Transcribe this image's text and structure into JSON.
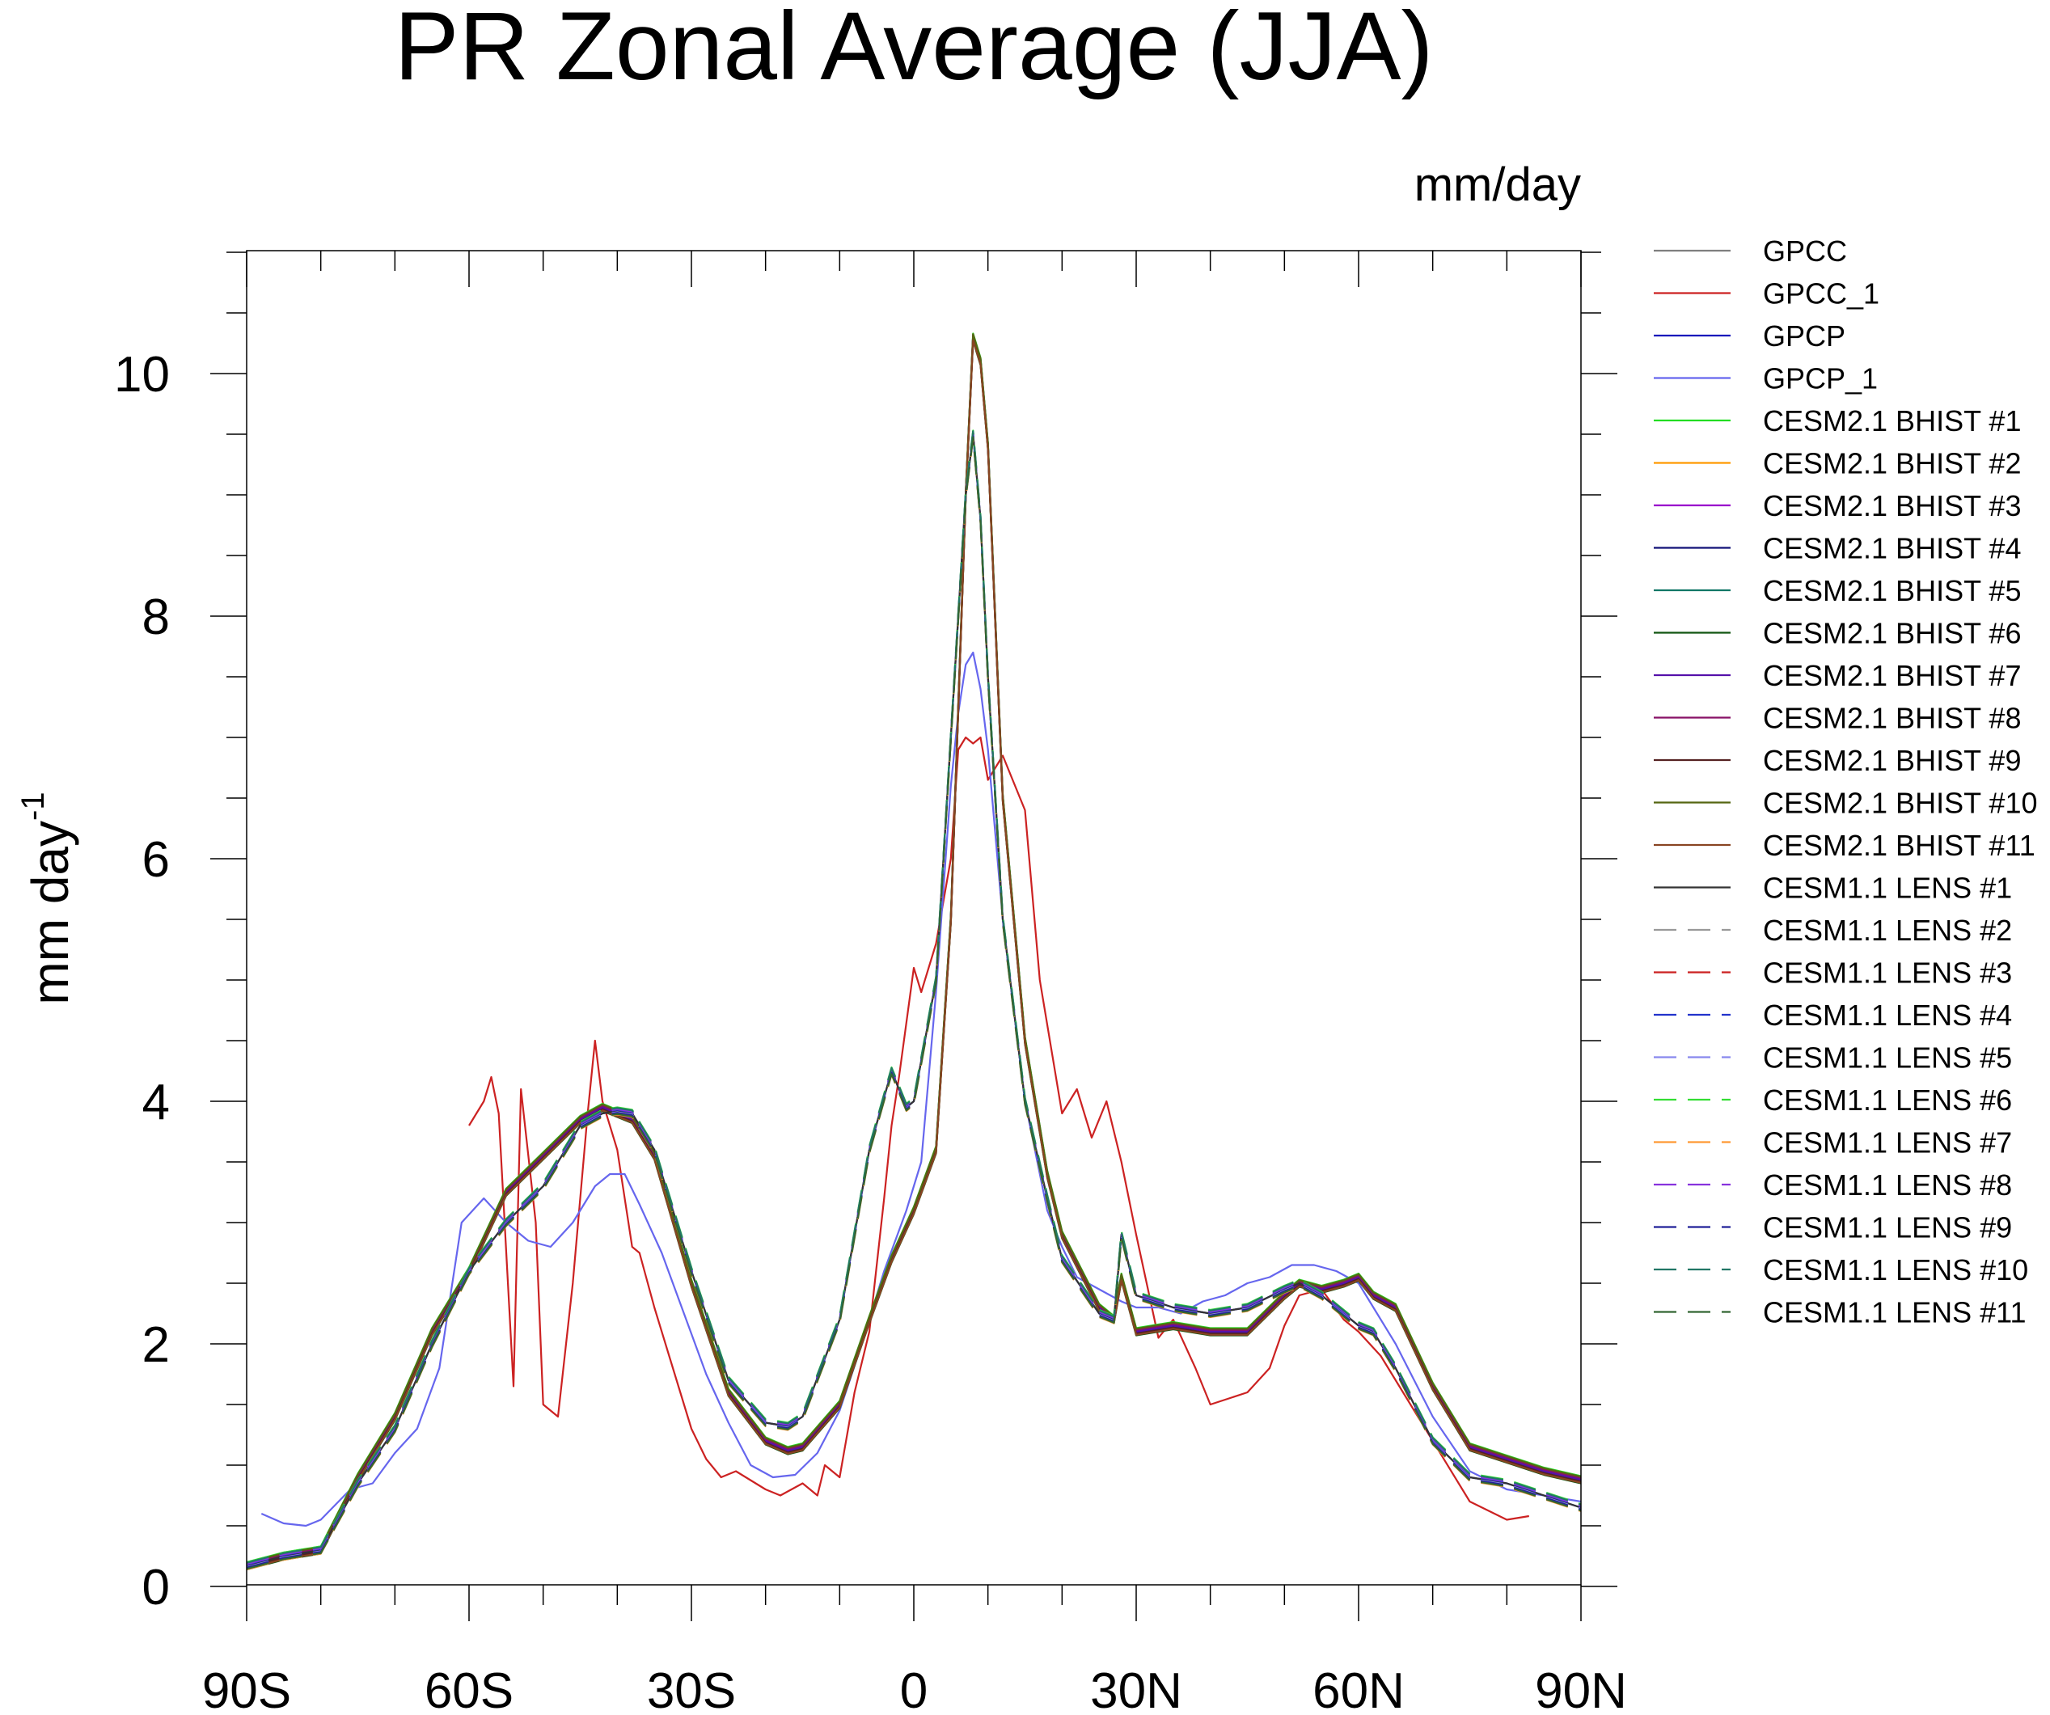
{
  "chart_data": {
    "type": "line",
    "title": "PR Zonal Average (JJA)",
    "units_label": "mm/day",
    "ylabel": "mm day",
    "ylabel_superscript": "-1",
    "xlim": [
      -90,
      90
    ],
    "ylim": [
      0,
      11
    ],
    "x_ticks": [
      {
        "value": -90,
        "label": "90S"
      },
      {
        "value": -60,
        "label": "60S"
      },
      {
        "value": -30,
        "label": "30S"
      },
      {
        "value": 0,
        "label": "0"
      },
      {
        "value": 30,
        "label": "30N"
      },
      {
        "value": 60,
        "label": "60N"
      },
      {
        "value": 90,
        "label": "90N"
      }
    ],
    "y_ticks": [
      {
        "value": 0,
        "label": "0"
      },
      {
        "value": 2,
        "label": "2"
      },
      {
        "value": 4,
        "label": "4"
      },
      {
        "value": 6,
        "label": "6"
      },
      {
        "value": 8,
        "label": "8"
      },
      {
        "value": 10,
        "label": "10"
      }
    ],
    "legend_position": "right",
    "profiles": {
      "cesm2": {
        "x": [
          -90,
          -85,
          -80,
          -75,
          -70,
          -65,
          -60,
          -55,
          -50,
          -45,
          -42,
          -40,
          -38,
          -35,
          -30,
          -25,
          -20,
          -17,
          -15,
          -10,
          -6,
          -3,
          0,
          3,
          5,
          7,
          8,
          9,
          10,
          12,
          15,
          18,
          20,
          25,
          27,
          28,
          30,
          35,
          40,
          45,
          50,
          52,
          55,
          58,
          60,
          62,
          65,
          70,
          75,
          80,
          85,
          90
        ],
        "y": [
          0.17,
          0.25,
          0.3,
          0.9,
          1.4,
          2.1,
          2.6,
          3.25,
          3.55,
          3.85,
          3.95,
          3.9,
          3.85,
          3.55,
          2.5,
          1.6,
          1.2,
          1.12,
          1.15,
          1.5,
          2.2,
          2.7,
          3.1,
          3.6,
          5.5,
          9.0,
          10.3,
          10.1,
          9.4,
          6.5,
          4.5,
          3.4,
          2.9,
          2.3,
          2.2,
          2.55,
          2.1,
          2.15,
          2.1,
          2.1,
          2.4,
          2.5,
          2.45,
          2.5,
          2.55,
          2.4,
          2.3,
          1.65,
          1.15,
          1.05,
          0.95,
          0.88
        ]
      },
      "cesm1": {
        "x": [
          -90,
          -85,
          -80,
          -75,
          -70,
          -65,
          -60,
          -55,
          -50,
          -45,
          -42,
          -40,
          -38,
          -35,
          -30,
          -25,
          -20,
          -17,
          -15,
          -10,
          -6,
          -3,
          -1,
          0,
          3,
          5,
          7,
          8,
          9,
          10,
          12,
          15,
          18,
          20,
          25,
          27,
          28,
          30,
          35,
          40,
          45,
          50,
          52,
          55,
          58,
          60,
          62,
          65,
          70,
          75,
          80,
          85,
          90
        ],
        "y": [
          0.17,
          0.25,
          0.3,
          0.85,
          1.3,
          2.0,
          2.6,
          3.0,
          3.3,
          3.8,
          3.9,
          3.92,
          3.9,
          3.6,
          2.6,
          1.7,
          1.35,
          1.32,
          1.4,
          2.2,
          3.6,
          4.25,
          3.95,
          4.0,
          5.0,
          7.0,
          9.0,
          9.5,
          8.8,
          7.5,
          5.5,
          4.0,
          3.2,
          2.7,
          2.25,
          2.2,
          2.9,
          2.4,
          2.3,
          2.25,
          2.3,
          2.45,
          2.5,
          2.4,
          2.25,
          2.15,
          2.1,
          1.8,
          1.2,
          0.9,
          0.85,
          0.75,
          0.65
        ]
      },
      "gpcc": {
        "x": [
          -60,
          -58,
          -57,
          -56,
          -54,
          -53,
          -51,
          -50,
          -48,
          -46,
          -44,
          -43,
          -42,
          -40,
          -38,
          -37,
          -35,
          -33,
          -30,
          -28,
          -26,
          -24,
          -20,
          -18,
          -15,
          -13,
          -12,
          -10,
          -9,
          -8,
          -6,
          -4,
          -3,
          -2,
          0,
          1,
          3,
          5,
          6,
          7,
          8,
          9,
          10,
          12,
          15,
          17,
          20,
          22,
          24,
          26,
          28,
          30,
          33,
          35,
          38,
          40,
          45,
          48,
          50,
          52,
          55,
          58,
          60,
          63,
          66,
          70,
          75,
          80,
          83
        ],
        "y": [
          3.8,
          4.0,
          4.2,
          3.9,
          1.65,
          4.1,
          3.0,
          1.5,
          1.4,
          2.5,
          3.9,
          4.5,
          4.0,
          3.6,
          2.8,
          2.75,
          2.3,
          1.9,
          1.3,
          1.05,
          0.9,
          0.95,
          0.8,
          0.75,
          0.85,
          0.75,
          1.0,
          0.9,
          1.25,
          1.6,
          2.1,
          3.2,
          3.8,
          4.2,
          5.1,
          4.9,
          5.3,
          6.0,
          6.9,
          7.0,
          6.95,
          7.0,
          6.65,
          6.85,
          6.4,
          5.0,
          3.9,
          4.1,
          3.7,
          4.0,
          3.5,
          2.9,
          2.05,
          2.2,
          1.8,
          1.5,
          1.6,
          1.8,
          2.15,
          2.4,
          2.45,
          2.2,
          2.1,
          1.9,
          1.6,
          1.2,
          0.7,
          0.55,
          0.58
        ]
      },
      "gpcp": {
        "x": [
          -88,
          -85,
          -82,
          -80,
          -76,
          -73,
          -70,
          -67,
          -64,
          -61,
          -58,
          -55,
          -52,
          -49,
          -46,
          -43,
          -41,
          -39,
          -37,
          -34,
          -31,
          -28,
          -25,
          -22,
          -19,
          -16,
          -13,
          -10,
          -7,
          -4,
          -1,
          1,
          3,
          5,
          6,
          7,
          8,
          9,
          10,
          12,
          15,
          18,
          20,
          22,
          25,
          28,
          30,
          33,
          36,
          39,
          42,
          45,
          48,
          51,
          54,
          57,
          60,
          65,
          70,
          75,
          80,
          85,
          90
        ],
        "y": [
          0.6,
          0.52,
          0.5,
          0.55,
          0.8,
          0.85,
          1.1,
          1.3,
          1.8,
          3.0,
          3.2,
          3.0,
          2.85,
          2.8,
          3.0,
          3.3,
          3.4,
          3.4,
          3.15,
          2.75,
          2.25,
          1.75,
          1.35,
          1.0,
          0.9,
          0.92,
          1.1,
          1.45,
          2.0,
          2.6,
          3.1,
          3.5,
          4.9,
          6.6,
          7.2,
          7.6,
          7.7,
          7.4,
          6.9,
          5.5,
          4.0,
          3.1,
          2.8,
          2.55,
          2.45,
          2.35,
          2.3,
          2.3,
          2.25,
          2.35,
          2.4,
          2.5,
          2.55,
          2.65,
          2.65,
          2.6,
          2.5,
          2.0,
          1.4,
          0.95,
          0.8,
          0.75,
          0.7
        ]
      }
    },
    "series": [
      {
        "name": "GPCC",
        "color": "#7f7f7f",
        "dash": "solid",
        "profile": "cesm2",
        "offset": 0.0
      },
      {
        "name": "GPCC_1",
        "color": "#cc2222",
        "dash": "solid",
        "profile": "gpcc",
        "offset": 0.0
      },
      {
        "name": "GPCP",
        "color": "#1111bb",
        "dash": "solid",
        "profile": "cesm1",
        "offset": 0.0
      },
      {
        "name": "GPCP_1",
        "color": "#6666ee",
        "dash": "solid",
        "profile": "gpcp",
        "offset": 0.0
      },
      {
        "name": "CESM2.1 BHIST #1",
        "color": "#22dd22",
        "dash": "solid",
        "profile": "cesm2",
        "offset": 0.03
      },
      {
        "name": "CESM2.1 BHIST #2",
        "color": "#ff9900",
        "dash": "solid",
        "profile": "cesm2",
        "offset": -0.02
      },
      {
        "name": "CESM2.1 BHIST #3",
        "color": "#9900cc",
        "dash": "solid",
        "profile": "cesm2",
        "offset": 0.01
      },
      {
        "name": "CESM2.1 BHIST #4",
        "color": "#111177",
        "dash": "solid",
        "profile": "cesm2",
        "offset": -0.01
      },
      {
        "name": "CESM2.1 BHIST #5",
        "color": "#117766",
        "dash": "solid",
        "profile": "cesm2",
        "offset": 0.02
      },
      {
        "name": "CESM2.1 BHIST #6",
        "color": "#115511",
        "dash": "solid",
        "profile": "cesm2",
        "offset": -0.03
      },
      {
        "name": "CESM2.1 BHIST #7",
        "color": "#5511aa",
        "dash": "solid",
        "profile": "cesm2",
        "offset": 0.0
      },
      {
        "name": "CESM2.1 BHIST #8",
        "color": "#881166",
        "dash": "solid",
        "profile": "cesm2",
        "offset": 0.015
      },
      {
        "name": "CESM2.1 BHIST #9",
        "color": "#552222",
        "dash": "solid",
        "profile": "cesm2",
        "offset": -0.015
      },
      {
        "name": "CESM2.1 BHIST #10",
        "color": "#556611",
        "dash": "solid",
        "profile": "cesm2",
        "offset": 0.025
      },
      {
        "name": "CESM2.1 BHIST #11",
        "color": "#884422",
        "dash": "solid",
        "profile": "cesm2",
        "offset": -0.025
      },
      {
        "name": "CESM1.1 LENS #1",
        "color": "#333333",
        "dash": "solid",
        "profile": "cesm1",
        "offset": 0.0
      },
      {
        "name": "CESM1.1 LENS #2",
        "color": "#999999",
        "dash": "dashed",
        "profile": "cesm1",
        "offset": 0.02
      },
      {
        "name": "CESM1.1 LENS #3",
        "color": "#cc2222",
        "dash": "dashed",
        "profile": "cesm1",
        "offset": -0.02
      },
      {
        "name": "CESM1.1 LENS #4",
        "color": "#2233cc",
        "dash": "dashed",
        "profile": "cesm1",
        "offset": 0.01
      },
      {
        "name": "CESM1.1 LENS #5",
        "color": "#8888ee",
        "dash": "dashed",
        "profile": "cesm1",
        "offset": -0.01
      },
      {
        "name": "CESM1.1 LENS #6",
        "color": "#33dd33",
        "dash": "dashed",
        "profile": "cesm1",
        "offset": 0.03
      },
      {
        "name": "CESM1.1 LENS #7",
        "color": "#ff9933",
        "dash": "dashed",
        "profile": "cesm1",
        "offset": -0.03
      },
      {
        "name": "CESM1.1 LENS #8",
        "color": "#8833dd",
        "dash": "dashed",
        "profile": "cesm1",
        "offset": 0.015
      },
      {
        "name": "CESM1.1 LENS #9",
        "color": "#222299",
        "dash": "dashed",
        "profile": "cesm1",
        "offset": -0.015
      },
      {
        "name": "CESM1.1 LENS #10",
        "color": "#227766",
        "dash": "dashed",
        "profile": "cesm1",
        "offset": 0.025
      },
      {
        "name": "CESM1.1 LENS #11",
        "color": "#336633",
        "dash": "dashed",
        "profile": "cesm1",
        "offset": -0.025
      }
    ]
  }
}
